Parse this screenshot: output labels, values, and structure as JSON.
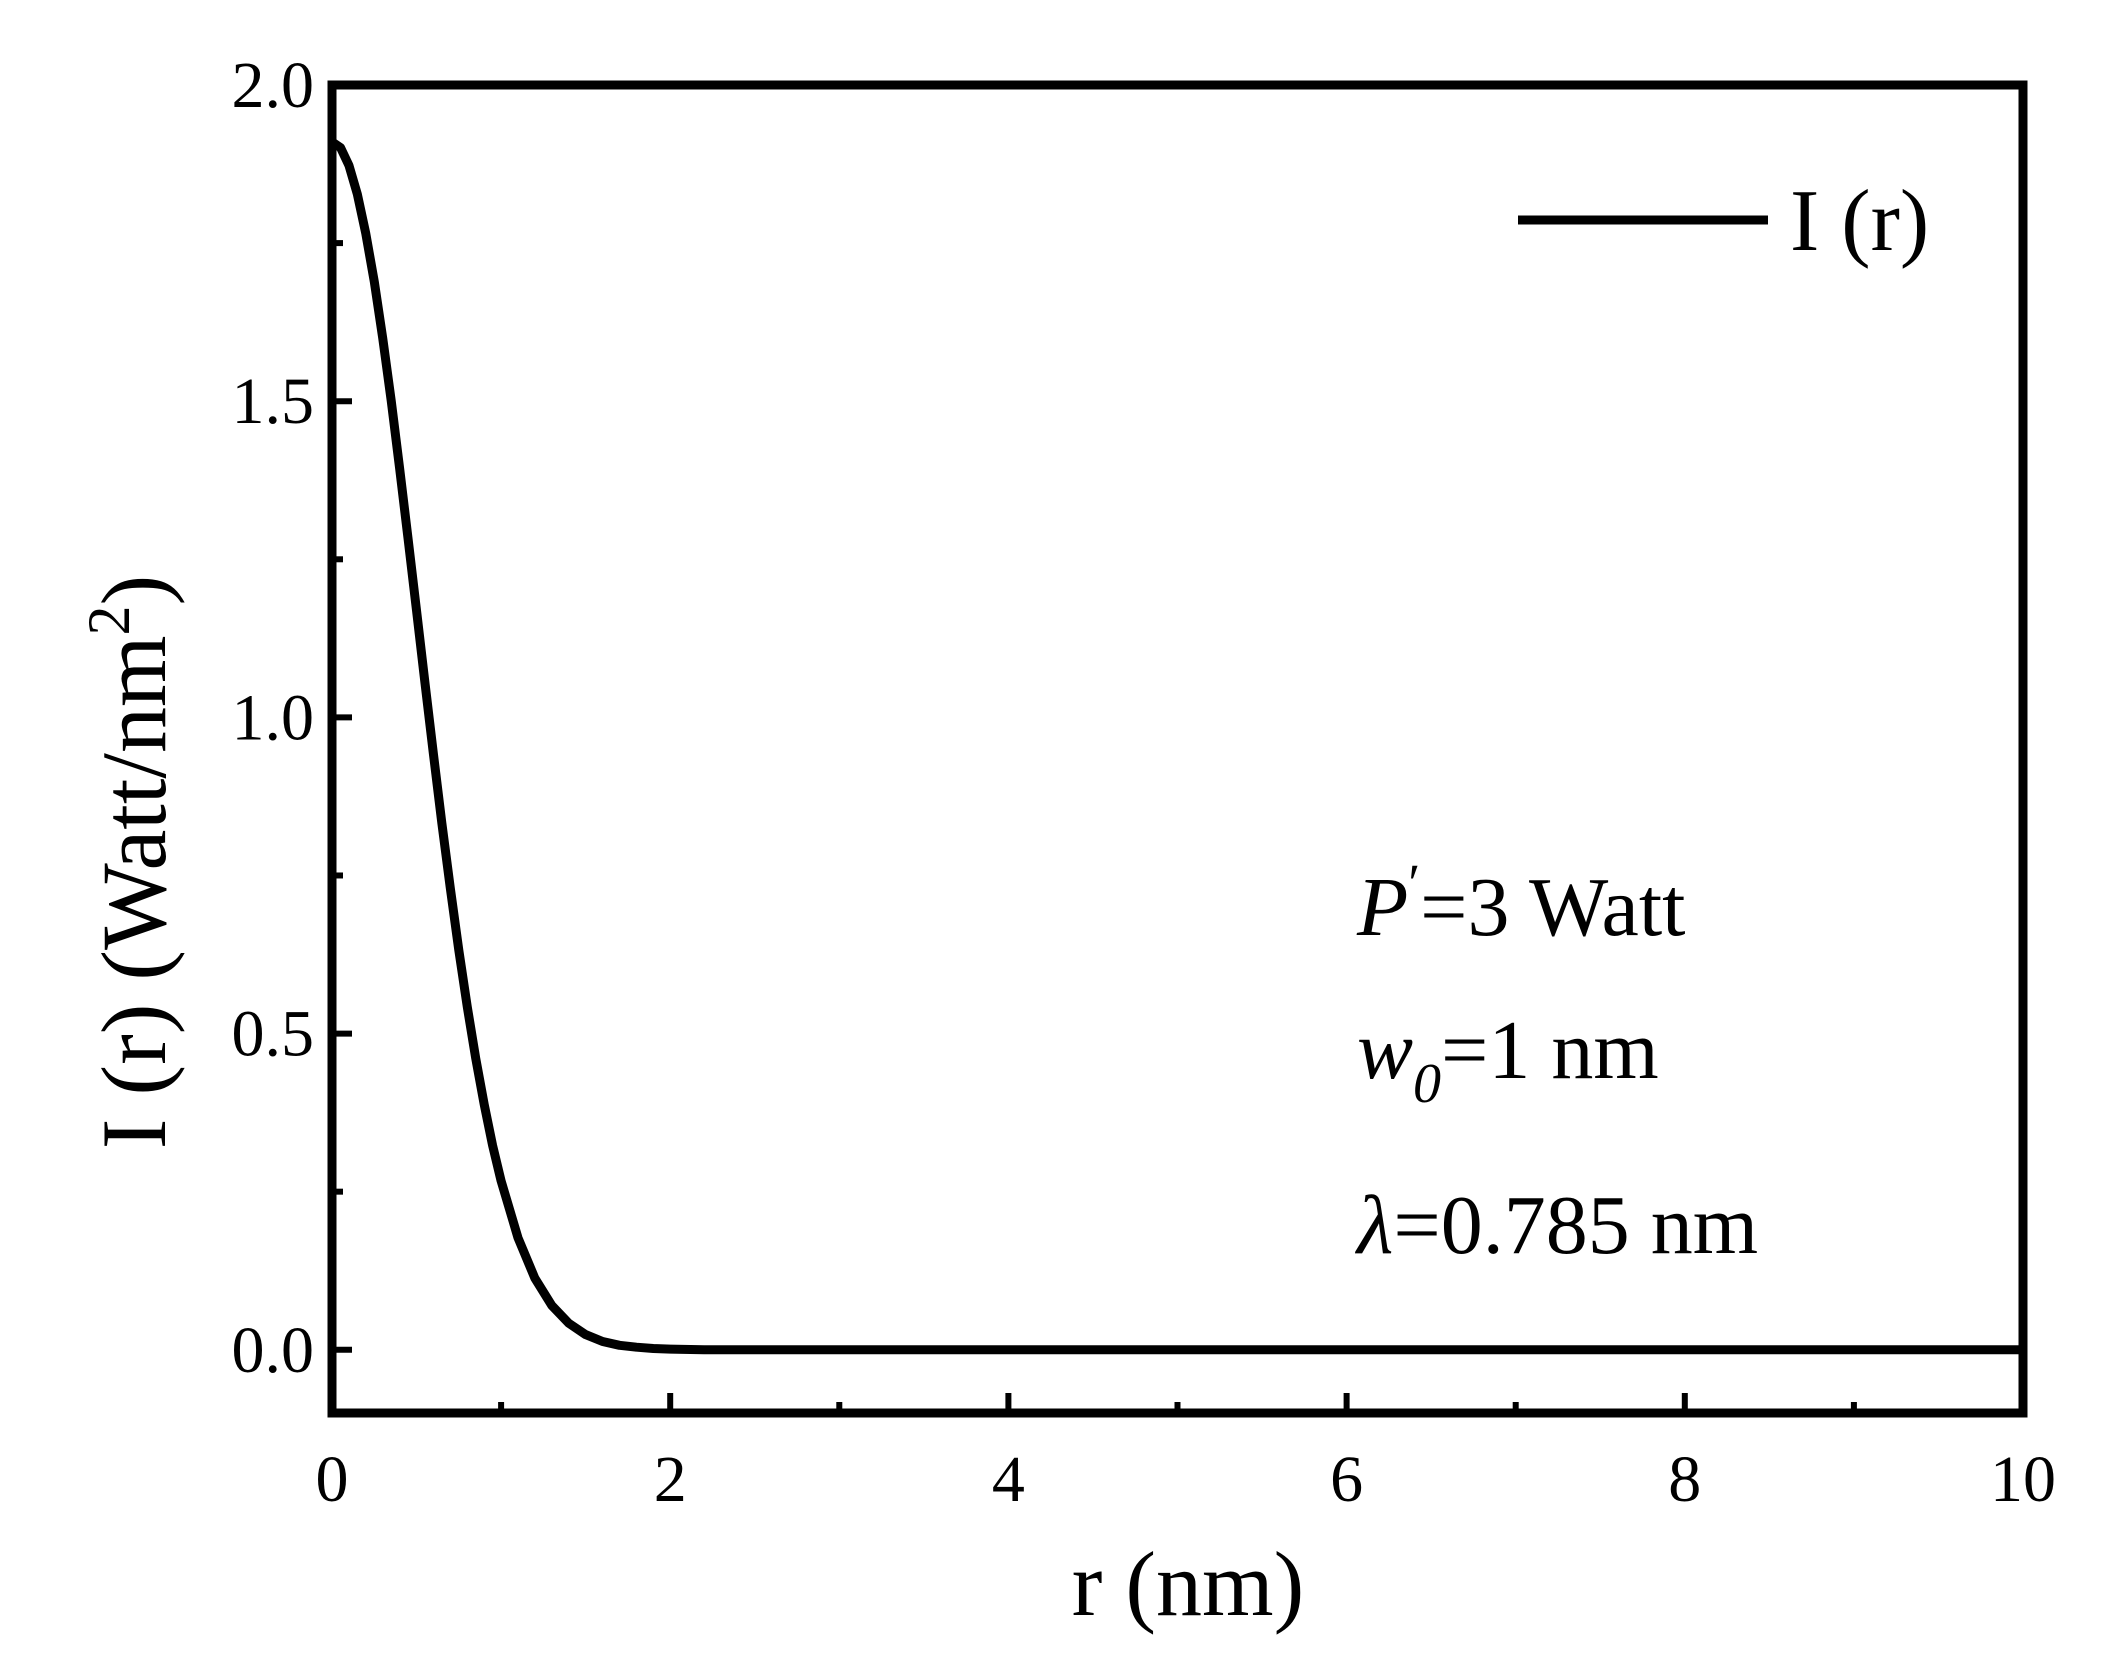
{
  "chart_data": {
    "type": "line",
    "xlabel": "r  (nm)",
    "ylabel_main": "I (r)  (Watt/nm",
    "ylabel_sup": "2",
    "ylabel_close": ")",
    "xlim": [
      0,
      10
    ],
    "ylim": [
      -0.1,
      2.0
    ],
    "xticks": [
      0,
      2,
      4,
      6,
      8,
      10
    ],
    "xtick_labels": [
      "0",
      "2",
      "4",
      "6",
      "8",
      "10"
    ],
    "xminor": [
      1,
      3,
      5,
      7,
      9
    ],
    "yticks": [
      0.0,
      0.5,
      1.0,
      1.5,
      2.0
    ],
    "ytick_labels": [
      "0.0",
      "0.5",
      "1.0",
      "1.5",
      "2.0"
    ],
    "yminor": [
      0.25,
      0.75,
      1.25,
      1.75
    ],
    "grid": false,
    "legend_position": "top-right",
    "series": [
      {
        "name": "I (r)",
        "color": "#000000",
        "x": [
          0,
          0.05,
          0.1,
          0.15,
          0.2,
          0.25,
          0.3,
          0.35,
          0.4,
          0.45,
          0.5,
          0.55,
          0.6,
          0.65,
          0.7,
          0.75,
          0.8,
          0.85,
          0.9,
          0.95,
          1.0,
          1.1,
          1.2,
          1.3,
          1.4,
          1.5,
          1.6,
          1.7,
          1.8,
          1.9,
          2.0,
          2.2,
          2.4,
          2.6,
          2.8,
          3.0,
          4.0,
          5.0,
          6.0,
          7.0,
          8.0,
          9.0,
          10.0
        ],
        "y": [
          1.91,
          1.901,
          1.873,
          1.827,
          1.765,
          1.689,
          1.6,
          1.501,
          1.394,
          1.282,
          1.168,
          1.054,
          0.941,
          0.832,
          0.729,
          0.632,
          0.542,
          0.461,
          0.388,
          0.323,
          0.267,
          0.177,
          0.113,
          0.07,
          0.042,
          0.024,
          0.013,
          0.007,
          0.004,
          0.002,
          0.001,
          0.0,
          0.0,
          0.0,
          0.0,
          0.0,
          0.0,
          0.0,
          0.0,
          0.0,
          0.0,
          0.0,
          0.0
        ]
      }
    ],
    "annotations": {
      "power_symbol": "P",
      "power_prime": "′",
      "power_value": "=3 Watt",
      "waist_symbol": "w",
      "waist_sub": "0",
      "waist_value": "=1 nm",
      "wavelength_symbol": "λ",
      "wavelength_value": "=0.785 nm"
    }
  }
}
